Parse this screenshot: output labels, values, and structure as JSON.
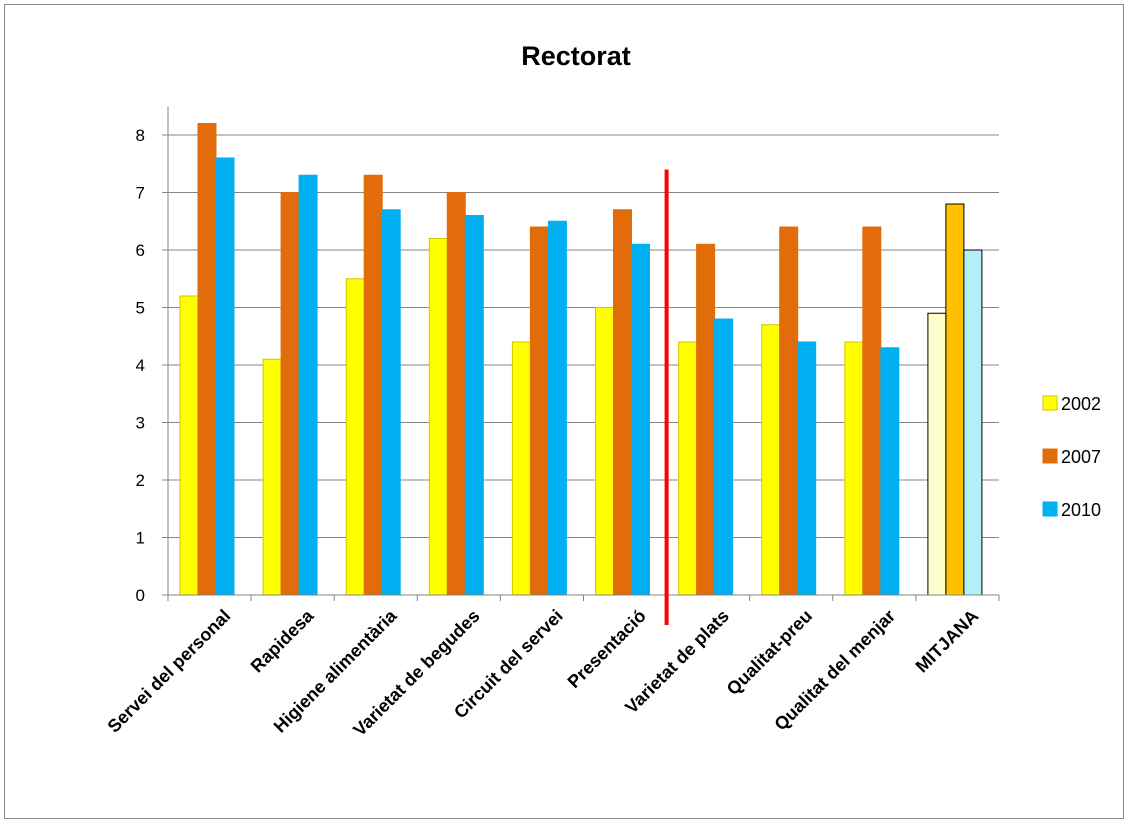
{
  "chart_data": {
    "type": "bar",
    "title": "Rectorat",
    "categories": [
      "Servei del personal",
      "Rapidesa",
      "Higiene alimentària",
      "Varietat de begudes",
      "Circuit del servei",
      "Presentació",
      "Varietat de plats",
      "Qualitat-preu",
      "Qualitat del menjar",
      "MITJANA"
    ],
    "series": [
      {
        "name": "2002",
        "color": "#ffff00",
        "edge": "#d4c400",
        "values": [
          5.2,
          4.1,
          5.5,
          6.2,
          4.4,
          5.0,
          4.4,
          4.7,
          4.4,
          4.9
        ]
      },
      {
        "name": "2007",
        "color": "#e36c0a",
        "edge": "#e36c0a",
        "values": [
          8.2,
          7.0,
          7.3,
          7.0,
          6.4,
          6.7,
          6.1,
          6.4,
          6.4,
          6.8
        ]
      },
      {
        "name": "2010",
        "color": "#00b0f0",
        "edge": "#00b0f0",
        "values": [
          7.6,
          7.3,
          6.7,
          6.6,
          6.5,
          6.1,
          4.8,
          4.4,
          4.3,
          6.0
        ]
      }
    ],
    "highlight_last_category_colors": [
      "#ffffcc",
      "#ffc000",
      "#b3f0f5"
    ],
    "y_ticks": [
      "0",
      "1",
      "2",
      "3",
      "4",
      "5",
      "6",
      "7",
      "8"
    ],
    "ylim": [
      0,
      8.5
    ],
    "grid": true,
    "legend_position": "right",
    "divider": {
      "after_category": "Presentació",
      "color": "#ff0000",
      "top_value": 7.4
    }
  }
}
